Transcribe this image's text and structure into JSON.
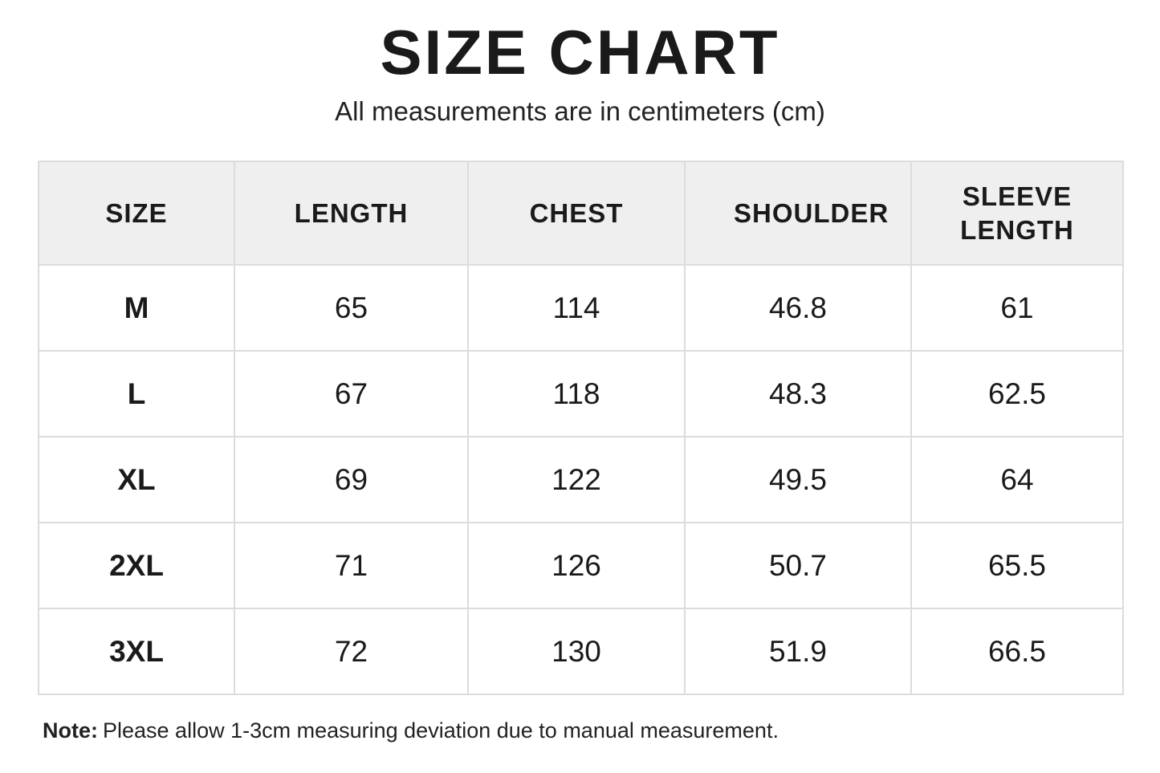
{
  "header": {
    "title": "SIZE CHART",
    "subtitle": "All measurements are in centimeters (cm)"
  },
  "table": {
    "columns": [
      "SIZE",
      "LENGTH",
      "CHEST",
      "SHOULDER",
      "SLEEVE LENGTH"
    ],
    "rows": [
      [
        "M",
        65,
        114,
        46.8,
        61
      ],
      [
        "L",
        67,
        118,
        48.3,
        62.5
      ],
      [
        "XL",
        69,
        122,
        49.5,
        64
      ],
      [
        "2XL",
        71,
        126,
        50.7,
        65.5
      ],
      [
        "3XL",
        72,
        130,
        51.9,
        66.5
      ]
    ]
  },
  "note": {
    "label": "Note:",
    "text": "Please allow 1-3cm measuring deviation due to manual measurement."
  }
}
